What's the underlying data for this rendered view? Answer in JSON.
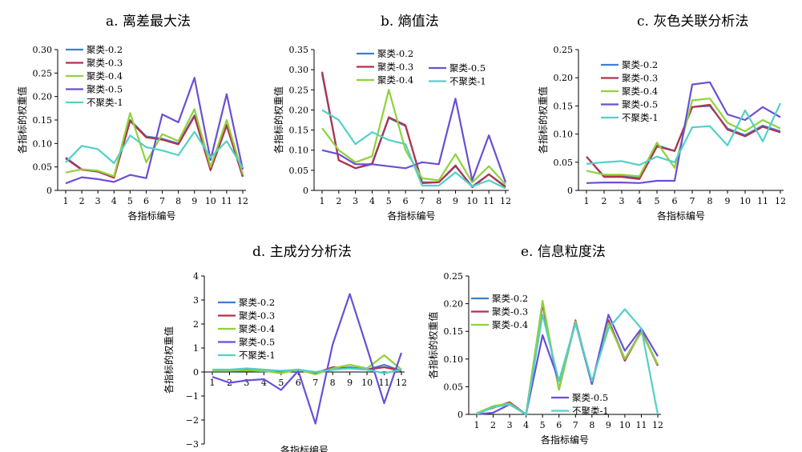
{
  "colors": {
    "聚类-0.2": "#3e7fd4",
    "聚类-0.3": "#b5304c",
    "聚类-0.4": "#8fd23a",
    "聚类-0.5": "#6a4fd6",
    "不聚类-1": "#52d0c9"
  },
  "chart_data": [
    {
      "id": "a",
      "type": "line",
      "title": "a. 离差最大法",
      "xlabel": "各指标编号",
      "ylabel": "各指标的权重值",
      "x": [
        1,
        2,
        3,
        4,
        5,
        6,
        7,
        8,
        9,
        10,
        11,
        12
      ],
      "ylim": [
        0,
        0.3
      ],
      "yticks": [
        "0",
        "0.05",
        "0.10",
        "0.15",
        "0.20",
        "0.25",
        "0.30"
      ],
      "series": [
        {
          "name": "聚类-0.2",
          "values": [
            0.07,
            0.045,
            0.04,
            0.028,
            0.15,
            0.115,
            0.11,
            0.1,
            0.16,
            0.045,
            0.14,
            0.03
          ]
        },
        {
          "name": "聚类-0.3",
          "values": [
            0.068,
            0.044,
            0.04,
            0.027,
            0.148,
            0.113,
            0.108,
            0.098,
            0.158,
            0.043,
            0.138,
            0.029
          ]
        },
        {
          "name": "聚类-0.4",
          "values": [
            0.038,
            0.045,
            0.042,
            0.03,
            0.165,
            0.06,
            0.12,
            0.105,
            0.173,
            0.05,
            0.15,
            0.035
          ]
        },
        {
          "name": "聚类-0.5",
          "values": [
            0.015,
            0.028,
            0.024,
            0.018,
            0.033,
            0.026,
            0.162,
            0.145,
            0.24,
            0.065,
            0.205,
            0.045
          ]
        },
        {
          "name": "不聚类-1",
          "values": [
            0.06,
            0.095,
            0.088,
            0.058,
            0.117,
            0.092,
            0.085,
            0.075,
            0.125,
            0.07,
            0.105,
            0.048
          ]
        }
      ]
    },
    {
      "id": "b",
      "type": "line",
      "title": "b. 熵值法",
      "xlabel": "各指标编号",
      "ylabel": "各指标的权重值",
      "x": [
        1,
        2,
        3,
        4,
        5,
        6,
        7,
        8,
        9,
        10,
        11,
        12
      ],
      "ylim": [
        0,
        0.35
      ],
      "yticks": [
        "0",
        "0.05",
        "0.10",
        "0.15",
        "0.20",
        "0.25",
        "0.30",
        "0.35"
      ],
      "series": [
        {
          "name": "聚类-0.2",
          "values": [
            0.29,
            0.075,
            0.055,
            0.065,
            0.18,
            0.16,
            0.02,
            0.02,
            0.06,
            0.01,
            0.04,
            0.01
          ]
        },
        {
          "name": "聚类-0.3",
          "values": [
            0.295,
            0.075,
            0.055,
            0.067,
            0.182,
            0.162,
            0.018,
            0.02,
            0.062,
            0.008,
            0.04,
            0.008
          ]
        },
        {
          "name": "聚类-0.4",
          "values": [
            0.155,
            0.1,
            0.07,
            0.085,
            0.25,
            0.1,
            0.03,
            0.025,
            0.09,
            0.02,
            0.06,
            0.015
          ]
        },
        {
          "name": "聚类-0.5",
          "values": [
            0.1,
            0.09,
            0.065,
            0.065,
            0.06,
            0.055,
            0.07,
            0.065,
            0.228,
            0.025,
            0.137,
            0.02
          ]
        },
        {
          "name": "不聚类-1",
          "values": [
            0.2,
            0.175,
            0.115,
            0.145,
            0.125,
            0.115,
            0.012,
            0.012,
            0.045,
            0.01,
            0.025,
            0.005
          ]
        }
      ]
    },
    {
      "id": "c",
      "type": "line",
      "title": "c. 灰色关联分析法",
      "xlabel": "各指标编号",
      "ylabel": "各指标的权重值",
      "x": [
        1,
        2,
        3,
        4,
        5,
        6,
        7,
        8,
        9,
        10,
        11,
        12
      ],
      "ylim": [
        0,
        0.25
      ],
      "yticks": [
        "0",
        "0.05",
        "0.10",
        "0.15",
        "0.20",
        "0.25"
      ],
      "series": [
        {
          "name": "聚类-0.2",
          "values": [
            0.06,
            0.025,
            0.025,
            0.022,
            0.08,
            0.07,
            0.148,
            0.15,
            0.11,
            0.098,
            0.115,
            0.105
          ]
        },
        {
          "name": "聚类-0.3",
          "values": [
            0.06,
            0.024,
            0.024,
            0.02,
            0.078,
            0.07,
            0.148,
            0.152,
            0.108,
            0.096,
            0.113,
            0.103
          ]
        },
        {
          "name": "聚类-0.4",
          "values": [
            0.035,
            0.028,
            0.028,
            0.025,
            0.085,
            0.04,
            0.16,
            0.163,
            0.12,
            0.105,
            0.125,
            0.11
          ]
        },
        {
          "name": "聚类-0.5",
          "values": [
            0.013,
            0.014,
            0.014,
            0.013,
            0.017,
            0.017,
            0.188,
            0.192,
            0.135,
            0.125,
            0.148,
            0.13
          ]
        },
        {
          "name": "不聚类-1",
          "values": [
            0.047,
            0.05,
            0.052,
            0.045,
            0.06,
            0.05,
            0.112,
            0.114,
            0.08,
            0.142,
            0.087,
            0.155
          ]
        }
      ]
    },
    {
      "id": "d",
      "type": "line",
      "title": "d. 主成分分析法",
      "xlabel": "各指标编号",
      "ylabel": "各指标的权重值",
      "x": [
        1,
        2,
        3,
        4,
        5,
        6,
        7,
        8,
        9,
        10,
        11,
        12
      ],
      "ylim": [
        -3,
        4
      ],
      "yticks": [
        "−3",
        "−2",
        "−1",
        "0",
        "1",
        "2",
        "3",
        "4"
      ],
      "series": [
        {
          "name": "聚类-0.2",
          "values": [
            0.05,
            0.05,
            0.06,
            0.03,
            0,
            0.1,
            -0.05,
            0.1,
            0.2,
            0.1,
            0.3,
            0.05
          ]
        },
        {
          "name": "聚类-0.3",
          "values": [
            0.05,
            0.08,
            0.1,
            0.08,
            0,
            0.1,
            -0.05,
            0.2,
            0.15,
            0.1,
            0.2,
            0.05
          ]
        },
        {
          "name": "聚类-0.4",
          "values": [
            0.05,
            0.05,
            0.06,
            0.05,
            -0.05,
            0.1,
            -0.1,
            0.15,
            0.3,
            0.15,
            0.7,
            0.1
          ]
        },
        {
          "name": "聚类-0.5",
          "values": [
            -0.2,
            -0.45,
            -0.35,
            -0.3,
            -0.75,
            0.05,
            -2.15,
            1.15,
            3.25,
            1.0,
            -1.3,
            0.8
          ]
        },
        {
          "name": "不聚类-1",
          "values": [
            0.1,
            0.1,
            0.15,
            0.1,
            0.05,
            0.1,
            0,
            0.1,
            0.15,
            0.1,
            -0.05,
            0.1
          ]
        }
      ]
    },
    {
      "id": "e",
      "type": "line",
      "title": "e. 信息粒度法",
      "xlabel": "各指标编号",
      "ylabel": "各指标的权重值",
      "x": [
        1,
        2,
        3,
        4,
        5,
        6,
        7,
        8,
        9,
        10,
        11,
        12
      ],
      "ylim": [
        0,
        0.25
      ],
      "yticks": [
        "0",
        "0.05",
        "0.10",
        "0.15",
        "0.20",
        "0.25"
      ],
      "series": [
        {
          "name": "聚类-0.2",
          "values": [
            0.002,
            0.013,
            0.02,
            0,
            0.2,
            0.045,
            0.168,
            0.055,
            0.17,
            0.1,
            0.15,
            0.09
          ]
        },
        {
          "name": "聚类-0.3",
          "values": [
            0.002,
            0.012,
            0.022,
            0,
            0.2,
            0.045,
            0.17,
            0.055,
            0.17,
            0.097,
            0.15,
            0.088
          ]
        },
        {
          "name": "聚类-0.4",
          "values": [
            0.002,
            0.015,
            0.02,
            0,
            0.205,
            0.045,
            0.168,
            0.058,
            0.165,
            0.1,
            0.148,
            0.09
          ]
        },
        {
          "name": "聚类-0.5",
          "values": [
            0,
            0.003,
            0.018,
            0,
            0.143,
            0.06,
            0.165,
            0.055,
            0.18,
            0.115,
            0.155,
            0.105
          ]
        },
        {
          "name": "不聚类-1",
          "values": [
            0,
            0.013,
            0.018,
            0,
            0.18,
            0.06,
            0.165,
            0.06,
            0.155,
            0.19,
            0.155,
            0
          ]
        }
      ]
    }
  ]
}
